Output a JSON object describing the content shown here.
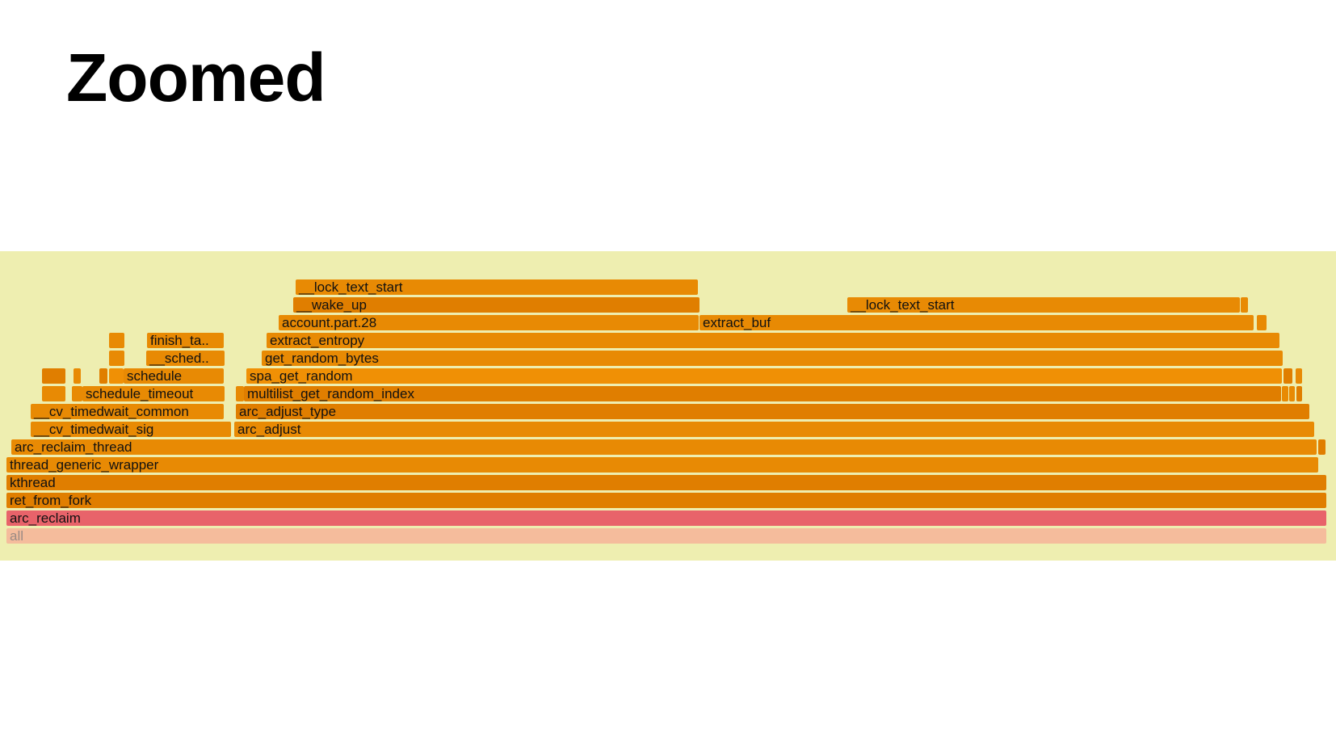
{
  "slide": {
    "title": "Zoomed"
  },
  "colors": {
    "panel_background": "#eeeeb0",
    "frame_orange_dark": "#e07e00",
    "frame_orange": "#e88a04",
    "frame_orange_light": "#f09005",
    "frame_root_pink": "#e8636a",
    "frame_all": "#f5bc9c",
    "frame_all_text": "#9a8a84"
  },
  "flamegraph": {
    "frames": [
      {
        "name": "all",
        "label": "all"
      },
      {
        "name": "arc-reclaim",
        "label": "arc_reclaim"
      },
      {
        "name": "ret-from-fork",
        "label": "ret_from_fork"
      },
      {
        "name": "kthread",
        "label": "kthread"
      },
      {
        "name": "thread-generic-wrapper",
        "label": "thread_generic_wrapper"
      },
      {
        "name": "arc-reclaim-thread",
        "label": "arc_reclaim_thread"
      },
      {
        "name": "arc-reclaim-thread-sibling",
        "label": ""
      },
      {
        "name": "cv-timedwait-sig",
        "label": "__cv_timedwait_sig"
      },
      {
        "name": "arc-adjust",
        "label": "arc_adjust"
      },
      {
        "name": "cv-timedwait-common",
        "label": "__cv_timedwait_common"
      },
      {
        "name": "arc-adjust-type",
        "label": "arc_adjust_type"
      },
      {
        "name": "small-frame-1",
        "label": ""
      },
      {
        "name": "small-frame-2",
        "label": ""
      },
      {
        "name": "schedule-timeout",
        "label": "schedule_timeout"
      },
      {
        "name": "small-frame-3",
        "label": ""
      },
      {
        "name": "multilist-get-random-index",
        "label": "multilist_get_random_index"
      },
      {
        "name": "small-frame-4",
        "label": ""
      },
      {
        "name": "small-frame-5",
        "label": ""
      },
      {
        "name": "small-frame-6",
        "label": ""
      },
      {
        "name": "small-frame-7",
        "label": ""
      },
      {
        "name": "small-frame-8",
        "label": ""
      },
      {
        "name": "small-frame-9",
        "label": ""
      },
      {
        "name": "small-frame-10",
        "label": ""
      },
      {
        "name": "schedule",
        "label": "schedule"
      },
      {
        "name": "spa-get-random",
        "label": "spa_get_random"
      },
      {
        "name": "small-frame-11",
        "label": ""
      },
      {
        "name": "small-frame-12",
        "label": ""
      },
      {
        "name": "small-frame-13",
        "label": ""
      },
      {
        "name": "sched-truncated",
        "label": "__sched.."
      },
      {
        "name": "get-random-bytes",
        "label": "get_random_bytes"
      },
      {
        "name": "small-frame-14",
        "label": ""
      },
      {
        "name": "finish-task-truncated",
        "label": "finish_ta.."
      },
      {
        "name": "extract-entropy",
        "label": "extract_entropy"
      },
      {
        "name": "account-part-28",
        "label": "account.part.28"
      },
      {
        "name": "extract-buf",
        "label": "extract_buf"
      },
      {
        "name": "small-frame-15",
        "label": ""
      },
      {
        "name": "wake-up",
        "label": "__wake_up"
      },
      {
        "name": "lock-text-start-right",
        "label": "__lock_text_start"
      },
      {
        "name": "small-frame-16",
        "label": ""
      },
      {
        "name": "lock-text-start-left",
        "label": "__lock_text_start"
      }
    ]
  }
}
